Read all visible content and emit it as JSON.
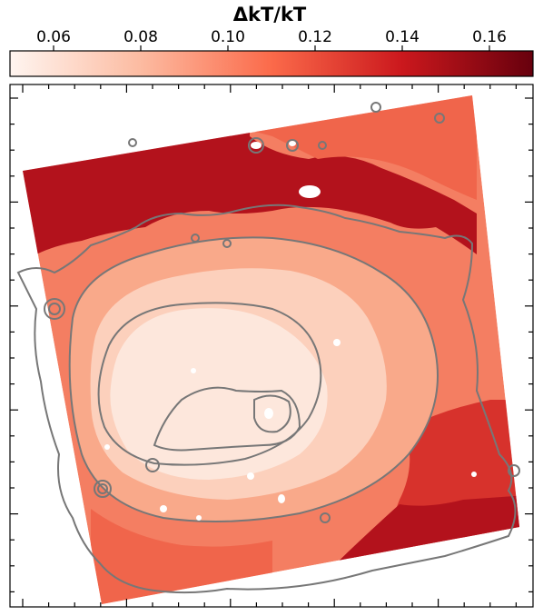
{
  "colorbar": {
    "title": "ΔkT/kT",
    "ticks": [
      {
        "label": "0.06",
        "value": 0.06
      },
      {
        "label": "0.08",
        "value": 0.08
      },
      {
        "label": "0.10",
        "value": 0.1
      },
      {
        "label": "0.12",
        "value": 0.12
      },
      {
        "label": "0.14",
        "value": 0.14
      },
      {
        "label": "0.16",
        "value": 0.16
      }
    ],
    "range": [
      0.05,
      0.17
    ],
    "colors": [
      "#fff5f0",
      "#fcbba1",
      "#fb6a4a",
      "#cb181d",
      "#67000d"
    ]
  },
  "map": {
    "contour_color": "#777777",
    "colors": {
      "lowest": "#fde7dc",
      "low": "#fcd0bc",
      "mid_low": "#f9a98a",
      "mid": "#f47e62",
      "mid_high": "#f0654b",
      "high": "#d7322c",
      "highest": "#b3121c"
    }
  }
}
